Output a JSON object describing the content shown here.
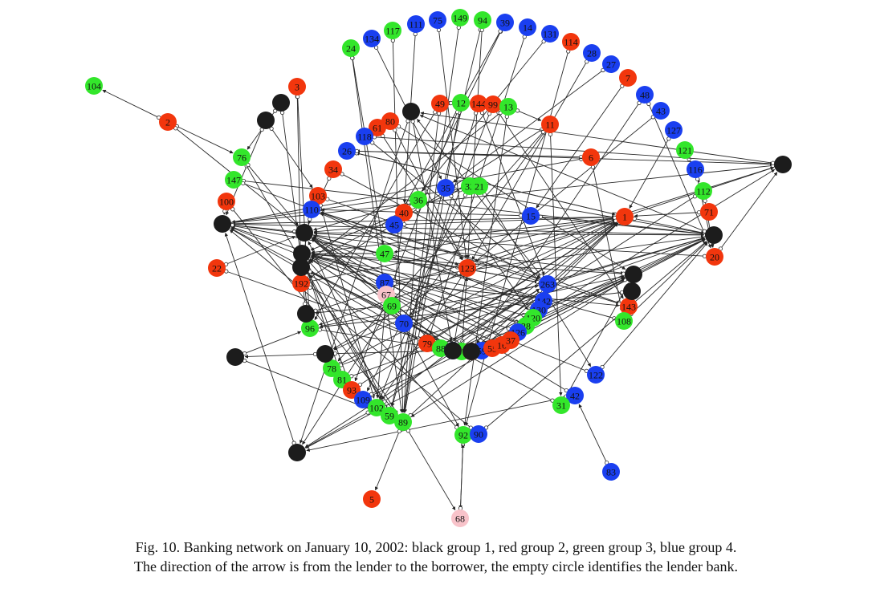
{
  "colors": {
    "black": "#1c1c1c",
    "red": "#f2360d",
    "green": "#33e62b",
    "blue": "#1a3ff0",
    "pink": "#f8c3ca"
  },
  "nodes": [
    {
      "id": "104",
      "color": "green",
      "label": "104"
    },
    {
      "id": "2",
      "color": "red",
      "label": "2"
    },
    {
      "id": "3",
      "color": "red",
      "label": "3"
    },
    {
      "id": "24",
      "color": "green",
      "label": "24"
    },
    {
      "id": "134",
      "color": "blue",
      "label": "134"
    },
    {
      "id": "117",
      "color": "green",
      "label": "117"
    },
    {
      "id": "111",
      "color": "blue",
      "label": "111"
    },
    {
      "id": "75",
      "color": "blue",
      "label": "75"
    },
    {
      "id": "149",
      "color": "green",
      "label": "149"
    },
    {
      "id": "94",
      "color": "green",
      "label": "94"
    },
    {
      "id": "39",
      "color": "blue",
      "label": "39"
    },
    {
      "id": "14",
      "color": "blue",
      "label": "14"
    },
    {
      "id": "131",
      "color": "blue",
      "label": "131"
    },
    {
      "id": "114",
      "color": "red",
      "label": "114"
    },
    {
      "id": "28",
      "color": "blue",
      "label": "28"
    },
    {
      "id": "27",
      "color": "blue",
      "label": "27"
    },
    {
      "id": "7",
      "color": "red",
      "label": "7"
    },
    {
      "id": "48",
      "color": "blue",
      "label": "48"
    },
    {
      "id": "43",
      "color": "blue",
      "label": "43"
    },
    {
      "id": "127",
      "color": "blue",
      "label": "127"
    },
    {
      "id": "121",
      "color": "green",
      "label": "121"
    },
    {
      "id": "116",
      "color": "blue",
      "label": "116"
    },
    {
      "id": "112",
      "color": "green",
      "label": "112"
    },
    {
      "id": "71",
      "color": "red",
      "label": "71"
    },
    {
      "id": "20",
      "color": "red",
      "label": "20"
    },
    {
      "id": "49",
      "color": "red",
      "label": "49"
    },
    {
      "id": "12",
      "color": "green",
      "label": "12"
    },
    {
      "id": "144",
      "color": "red",
      "label": "144"
    },
    {
      "id": "99",
      "color": "red",
      "label": "99"
    },
    {
      "id": "13",
      "color": "green",
      "label": "13"
    },
    {
      "id": "11",
      "color": "red",
      "label": "11"
    },
    {
      "id": "6",
      "color": "red",
      "label": "6"
    },
    {
      "id": "1",
      "color": "red",
      "label": "1"
    },
    {
      "id": "80",
      "color": "red",
      "label": "80"
    },
    {
      "id": "61",
      "color": "red",
      "label": "61"
    },
    {
      "id": "118",
      "color": "blue",
      "label": "118"
    },
    {
      "id": "26",
      "color": "blue",
      "label": "26"
    },
    {
      "id": "34",
      "color": "red",
      "label": "34"
    },
    {
      "id": "76",
      "color": "green",
      "label": "76"
    },
    {
      "id": "147",
      "color": "green",
      "label": "147"
    },
    {
      "id": "100",
      "color": "red",
      "label": "100"
    },
    {
      "id": "103",
      "color": "red",
      "label": "103"
    },
    {
      "id": "110",
      "color": "blue",
      "label": "110"
    },
    {
      "id": "22",
      "color": "red",
      "label": "22"
    },
    {
      "id": "192",
      "color": "red",
      "label": "192"
    },
    {
      "id": "35",
      "color": "blue",
      "label": "35"
    },
    {
      "id": "32",
      "color": "green",
      "label": "32"
    },
    {
      "id": "21",
      "color": "green",
      "label": "21"
    },
    {
      "id": "36",
      "color": "green",
      "label": "36"
    },
    {
      "id": "40",
      "color": "red",
      "label": "40"
    },
    {
      "id": "45",
      "color": "blue",
      "label": "45"
    },
    {
      "id": "15",
      "color": "blue",
      "label": "15"
    },
    {
      "id": "47",
      "color": "green",
      "label": "47"
    },
    {
      "id": "123",
      "color": "red",
      "label": "123"
    },
    {
      "id": "87",
      "color": "blue",
      "label": "87"
    },
    {
      "id": "67",
      "color": "pink",
      "label": "67"
    },
    {
      "id": "69",
      "color": "green",
      "label": "69"
    },
    {
      "id": "70",
      "color": "blue",
      "label": "70"
    },
    {
      "id": "96",
      "color": "green",
      "label": "96"
    },
    {
      "id": "263",
      "color": "blue",
      "label": "263"
    },
    {
      "id": "142",
      "color": "blue",
      "label": "142"
    },
    {
      "id": "130",
      "color": "blue",
      "label": "130"
    },
    {
      "id": "120",
      "color": "green",
      "label": "120"
    },
    {
      "id": "28b",
      "color": "green",
      "label": "28"
    },
    {
      "id": "126",
      "color": "blue",
      "label": "126"
    },
    {
      "id": "143",
      "color": "red",
      "label": "143"
    },
    {
      "id": "108",
      "color": "green",
      "label": "108"
    },
    {
      "id": "79",
      "color": "red",
      "label": "79"
    },
    {
      "id": "88",
      "color": "green",
      "label": "88"
    },
    {
      "id": "66",
      "color": "blue",
      "label": "66"
    },
    {
      "id": "57",
      "color": "green",
      "label": "57"
    },
    {
      "id": "65",
      "color": "red",
      "label": "65"
    },
    {
      "id": "59b",
      "color": "blue",
      "label": "59"
    },
    {
      "id": "55",
      "color": "red",
      "label": "55"
    },
    {
      "id": "16",
      "color": "red",
      "label": "16"
    },
    {
      "id": "37",
      "color": "red",
      "label": "37"
    },
    {
      "id": "122",
      "color": "blue",
      "label": "122"
    },
    {
      "id": "42",
      "color": "blue",
      "label": "42"
    },
    {
      "id": "31",
      "color": "green",
      "label": "31"
    },
    {
      "id": "83",
      "color": "blue",
      "label": "83"
    },
    {
      "id": "78",
      "color": "green",
      "label": "78"
    },
    {
      "id": "81",
      "color": "green",
      "label": "81"
    },
    {
      "id": "93",
      "color": "red",
      "label": "93"
    },
    {
      "id": "109",
      "color": "blue",
      "label": "109"
    },
    {
      "id": "102",
      "color": "green",
      "label": "102"
    },
    {
      "id": "59",
      "color": "green",
      "label": "59"
    },
    {
      "id": "89",
      "color": "green",
      "label": "89"
    },
    {
      "id": "92",
      "color": "green",
      "label": "92"
    },
    {
      "id": "90",
      "color": "blue",
      "label": "90"
    },
    {
      "id": "5",
      "color": "red",
      "label": "5"
    },
    {
      "id": "68",
      "color": "pink",
      "label": "68"
    },
    {
      "id": "b1",
      "color": "black",
      "label": ""
    },
    {
      "id": "b2",
      "color": "black",
      "label": ""
    },
    {
      "id": "b3",
      "color": "black",
      "label": ""
    },
    {
      "id": "b4",
      "color": "black",
      "label": ""
    },
    {
      "id": "b5",
      "color": "black",
      "label": ""
    },
    {
      "id": "b6",
      "color": "black",
      "label": ""
    },
    {
      "id": "b7",
      "color": "black",
      "label": ""
    },
    {
      "id": "b8",
      "color": "black",
      "label": ""
    },
    {
      "id": "b9",
      "color": "black",
      "label": ""
    },
    {
      "id": "b10",
      "color": "black",
      "label": ""
    },
    {
      "id": "b11",
      "color": "black",
      "label": ""
    },
    {
      "id": "b12",
      "color": "black",
      "label": ""
    },
    {
      "id": "b13",
      "color": "black",
      "label": ""
    },
    {
      "id": "b14",
      "color": "black",
      "label": ""
    },
    {
      "id": "b15",
      "color": "black",
      "label": ""
    },
    {
      "id": "b16",
      "color": "black",
      "label": ""
    },
    {
      "id": "b17",
      "color": "black",
      "label": ""
    }
  ],
  "edges": [
    [
      "2",
      "104"
    ],
    [
      "2",
      "76"
    ],
    [
      "2",
      "b16"
    ],
    [
      "3",
      "192"
    ],
    [
      "3",
      "96"
    ],
    [
      "b1",
      "76"
    ],
    [
      "b1",
      "96"
    ],
    [
      "b2",
      "103"
    ],
    [
      "b2",
      "b5"
    ],
    [
      "24",
      "47"
    ],
    [
      "24",
      "89"
    ],
    [
      "134",
      "35"
    ],
    [
      "117",
      "89"
    ],
    [
      "111",
      "40"
    ],
    [
      "75",
      "123"
    ],
    [
      "149",
      "89"
    ],
    [
      "94",
      "59"
    ],
    [
      "94",
      "123"
    ],
    [
      "39",
      "36"
    ],
    [
      "39",
      "45"
    ],
    [
      "14",
      "79"
    ],
    [
      "131",
      "45"
    ],
    [
      "114",
      "92"
    ],
    [
      "28",
      "123"
    ],
    [
      "27",
      "35"
    ],
    [
      "7",
      "15"
    ],
    [
      "48",
      "20"
    ],
    [
      "48",
      "b17"
    ],
    [
      "43",
      "123"
    ],
    [
      "127",
      "1"
    ],
    [
      "121",
      "112"
    ],
    [
      "116",
      "20"
    ],
    [
      "112",
      "b15"
    ],
    [
      "112",
      "20"
    ],
    [
      "71",
      "1"
    ],
    [
      "20",
      "b6"
    ],
    [
      "20",
      "b4"
    ],
    [
      "49",
      "89"
    ],
    [
      "49",
      "96"
    ],
    [
      "12",
      "89"
    ],
    [
      "12",
      "93"
    ],
    [
      "144",
      "59"
    ],
    [
      "144",
      "263"
    ],
    [
      "99",
      "102"
    ],
    [
      "99",
      "143"
    ],
    [
      "13",
      "11"
    ],
    [
      "13",
      "92"
    ],
    [
      "11",
      "192"
    ],
    [
      "11",
      "70"
    ],
    [
      "11",
      "31"
    ],
    [
      "11",
      "78"
    ],
    [
      "6",
      "b5"
    ],
    [
      "6",
      "26"
    ],
    [
      "6",
      "108"
    ],
    [
      "1",
      "96"
    ],
    [
      "1",
      "b5"
    ],
    [
      "1",
      "b9"
    ],
    [
      "1",
      "47"
    ],
    [
      "1",
      "88"
    ],
    [
      "1",
      "26"
    ],
    [
      "80",
      "b10"
    ],
    [
      "80",
      "123"
    ],
    [
      "61",
      "123"
    ],
    [
      "118",
      "263"
    ],
    [
      "118",
      "b4"
    ],
    [
      "26",
      "1"
    ],
    [
      "26",
      "b4"
    ],
    [
      "34",
      "b6"
    ],
    [
      "34",
      "263"
    ],
    [
      "76",
      "59"
    ],
    [
      "76",
      "b6"
    ],
    [
      "147",
      "b9"
    ],
    [
      "147",
      "123"
    ],
    [
      "100",
      "b5"
    ],
    [
      "100",
      "89"
    ],
    [
      "103",
      "143"
    ],
    [
      "103",
      "102"
    ],
    [
      "110",
      "b8"
    ],
    [
      "110",
      "263"
    ],
    [
      "22",
      "b6"
    ],
    [
      "22",
      "b16"
    ],
    [
      "192",
      "1"
    ],
    [
      "192",
      "79"
    ],
    [
      "35",
      "b9"
    ],
    [
      "35",
      "120"
    ],
    [
      "32",
      "109"
    ],
    [
      "32",
      "b7"
    ],
    [
      "21",
      "b5"
    ],
    [
      "21",
      "122"
    ],
    [
      "36",
      "b6"
    ],
    [
      "36",
      "89"
    ],
    [
      "40",
      "69"
    ],
    [
      "40",
      "b8"
    ],
    [
      "45",
      "1"
    ],
    [
      "45",
      "b6"
    ],
    [
      "15",
      "110"
    ],
    [
      "15",
      "b9"
    ],
    [
      "47",
      "263"
    ],
    [
      "47",
      "b7"
    ],
    [
      "123",
      "b7"
    ],
    [
      "123",
      "b4"
    ],
    [
      "123",
      "b16"
    ],
    [
      "123",
      "102"
    ],
    [
      "87",
      "b9"
    ],
    [
      "87",
      "143"
    ],
    [
      "67",
      "92"
    ],
    [
      "67",
      "102"
    ],
    [
      "69",
      "b12"
    ],
    [
      "69",
      "b15"
    ],
    [
      "70",
      "b9"
    ],
    [
      "70",
      "b10"
    ],
    [
      "96",
      "b16"
    ],
    [
      "96",
      "263"
    ],
    [
      "263",
      "b9"
    ],
    [
      "263",
      "b5"
    ],
    [
      "263",
      "b3"
    ],
    [
      "142",
      "b6"
    ],
    [
      "142",
      "b7"
    ],
    [
      "130",
      "b7"
    ],
    [
      "130",
      "110"
    ],
    [
      "120",
      "b7"
    ],
    [
      "120",
      "b4"
    ],
    [
      "28b",
      "b6"
    ],
    [
      "28b",
      "b5"
    ],
    [
      "126",
      "b16"
    ],
    [
      "126",
      "b7"
    ],
    [
      "143",
      "110"
    ],
    [
      "143",
      "b10"
    ],
    [
      "108",
      "b6"
    ],
    [
      "108",
      "b9"
    ],
    [
      "79",
      "1"
    ],
    [
      "79",
      "b5"
    ],
    [
      "88",
      "b6"
    ],
    [
      "88",
      "263"
    ],
    [
      "66",
      "b9"
    ],
    [
      "66",
      "b7"
    ],
    [
      "57",
      "b5"
    ],
    [
      "57",
      "123"
    ],
    [
      "65",
      "b6"
    ],
    [
      "65",
      "1"
    ],
    [
      "59b",
      "b9"
    ],
    [
      "59b",
      "b10"
    ],
    [
      "55",
      "1"
    ],
    [
      "55",
      "b16"
    ],
    [
      "16",
      "b7"
    ],
    [
      "16",
      "b9"
    ],
    [
      "37",
      "b6"
    ],
    [
      "37",
      "b15"
    ],
    [
      "122",
      "b9"
    ],
    [
      "122",
      "b5"
    ],
    [
      "42",
      "b6"
    ],
    [
      "42",
      "b15"
    ],
    [
      "31",
      "b8"
    ],
    [
      "31",
      "b10"
    ],
    [
      "83",
      "42"
    ],
    [
      "78",
      "1"
    ],
    [
      "78",
      "b9"
    ],
    [
      "81",
      "b10"
    ],
    [
      "81",
      "b7"
    ],
    [
      "93",
      "1"
    ],
    [
      "93",
      "b7"
    ],
    [
      "109",
      "b9"
    ],
    [
      "109",
      "263"
    ],
    [
      "102",
      "b15"
    ],
    [
      "102",
      "1"
    ],
    [
      "59",
      "b6"
    ],
    [
      "59",
      "b7"
    ],
    [
      "89",
      "5"
    ],
    [
      "89",
      "68"
    ],
    [
      "89",
      "1"
    ],
    [
      "92",
      "68"
    ],
    [
      "92",
      "b7"
    ],
    [
      "90",
      "b9"
    ],
    [
      "90",
      "b5"
    ],
    [
      "68",
      "92"
    ],
    [
      "b3",
      "b16"
    ],
    [
      "b11",
      "96"
    ],
    [
      "b12",
      "b4"
    ],
    [
      "b13",
      "b16"
    ],
    [
      "b14",
      "89"
    ],
    [
      "b14",
      "96"
    ],
    [
      "b15",
      "b5"
    ],
    [
      "b16",
      "b6"
    ],
    [
      "b7",
      "b16"
    ],
    [
      "b8",
      "89"
    ],
    [
      "b10",
      "89"
    ],
    [
      "b4",
      "b5"
    ],
    [
      "b9",
      "b6"
    ],
    [
      "b6",
      "b5"
    ],
    [
      "b5",
      "b9"
    ],
    [
      "b17",
      "b10"
    ],
    [
      "1",
      "b7"
    ],
    [
      "b17",
      "b8"
    ],
    [
      "b9",
      "b3"
    ],
    [
      "1",
      "b13"
    ],
    [
      "b3",
      "b15"
    ],
    [
      "b13",
      "b14"
    ],
    [
      "b12",
      "b8"
    ],
    [
      "b8",
      "b17"
    ],
    [
      "123",
      "b13"
    ],
    [
      "263",
      "b17"
    ],
    [
      "b4",
      "b3"
    ],
    [
      "b5",
      "b10"
    ],
    [
      "b10",
      "b7"
    ],
    [
      "49",
      "12"
    ],
    [
      "12",
      "49"
    ],
    [
      "13",
      "b8"
    ]
  ],
  "caption": {
    "line1": "Fig. 10.  Banking network on January 10, 2002: black group 1, red group 2, green group 3, blue group 4.",
    "line2": "The direction of the arrow is from the lender to the borrower, the empty circle identifies the lender bank."
  }
}
